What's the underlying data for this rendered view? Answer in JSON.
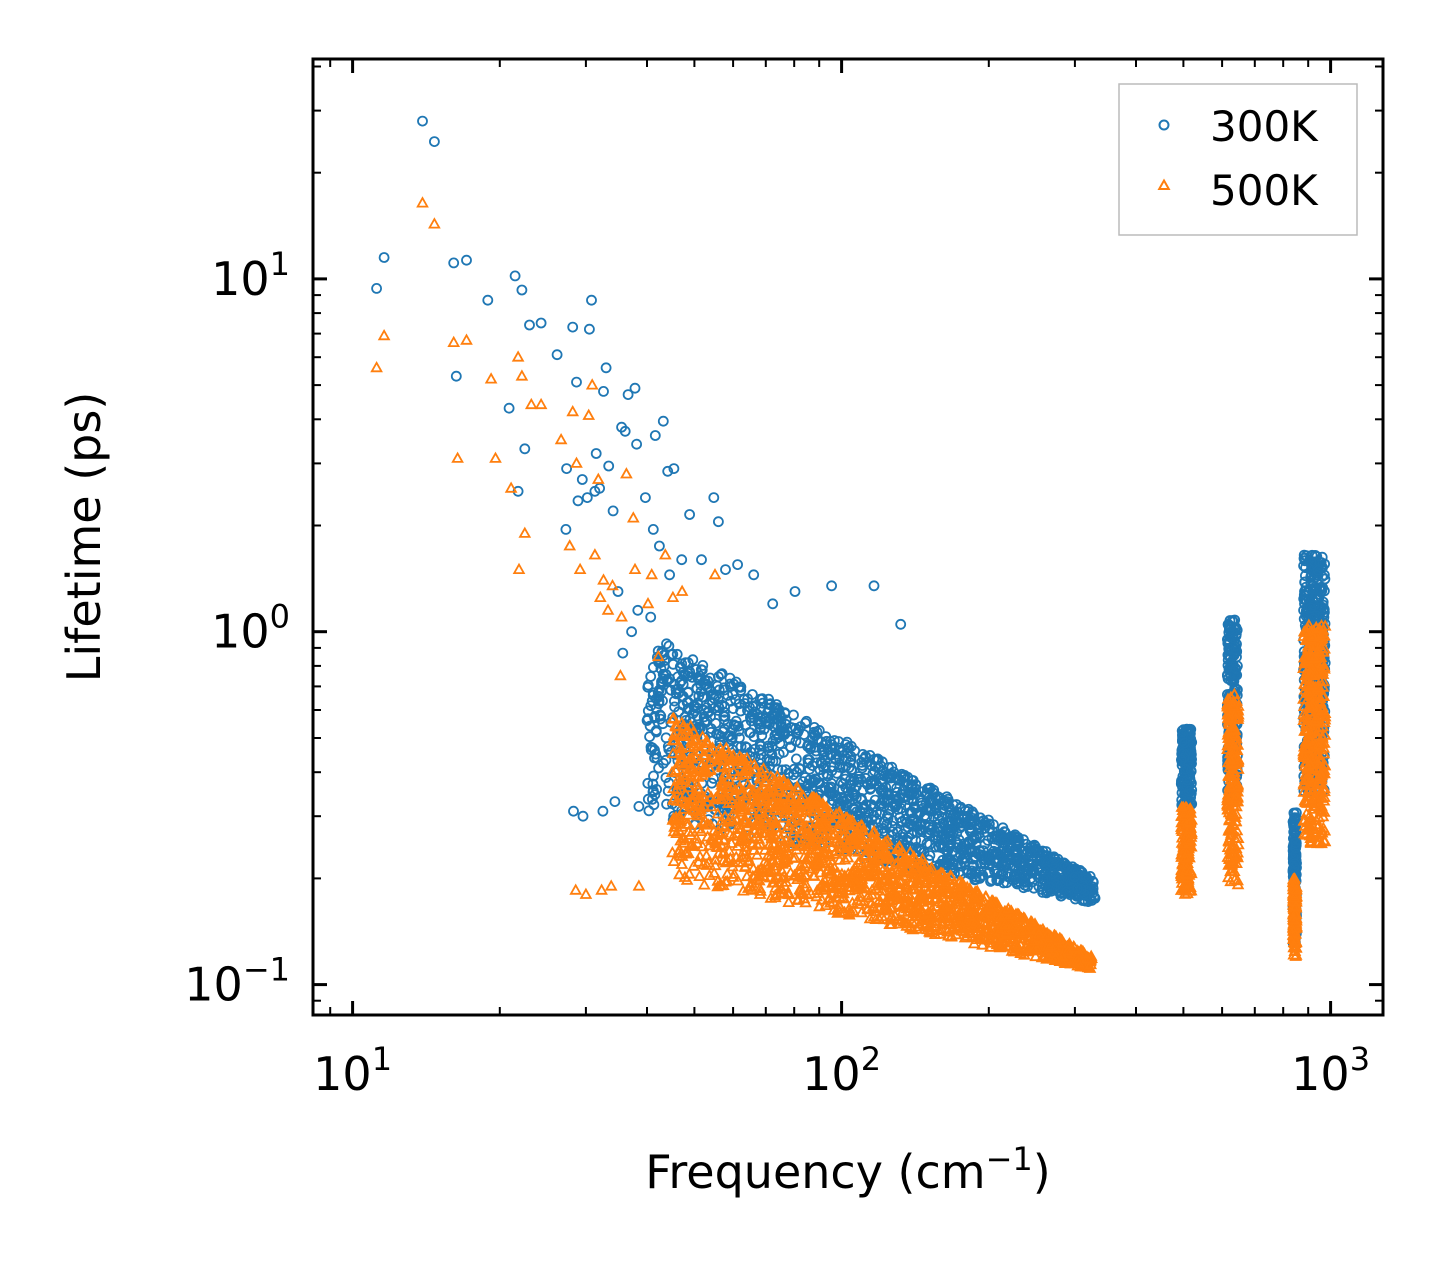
{
  "chart_data": {
    "type": "scatter",
    "xscale": "log",
    "yscale": "log",
    "xlabel": "Frequency (cm",
    "xlabel_sup": "−1",
    "xlabel_end": ")",
    "ylabel": "Lifetime (ps)",
    "xlim": [
      8.3,
      1280
    ],
    "ylim": [
      0.082,
      42
    ],
    "x_ticks": [
      {
        "value": 10,
        "base": "10",
        "exp": "1"
      },
      {
        "value": 100,
        "base": "10",
        "exp": "2"
      },
      {
        "value": 1000,
        "base": "10",
        "exp": "3"
      }
    ],
    "y_ticks": [
      {
        "value": 0.1,
        "base": "10",
        "exp": "−1"
      },
      {
        "value": 1,
        "base": "10",
        "exp": "0"
      },
      {
        "value": 10,
        "base": "10",
        "exp": "1"
      }
    ],
    "legend": {
      "position": "top-right"
    },
    "series": [
      {
        "name": "300K",
        "marker": "circle",
        "color": "#1f77b4",
        "points": [
          [
            11.2,
            9.4
          ],
          [
            11.6,
            11.5
          ],
          [
            13.9,
            28
          ],
          [
            14.7,
            24.5
          ],
          [
            16.1,
            11.1
          ],
          [
            16.3,
            5.3
          ],
          [
            17.1,
            11.3
          ],
          [
            18.9,
            8.7
          ],
          [
            20.9,
            4.3
          ],
          [
            21.5,
            10.2
          ],
          [
            21.8,
            2.5
          ],
          [
            22.2,
            9.3
          ],
          [
            22.5,
            3.3
          ],
          [
            23,
            7.4
          ],
          [
            24.3,
            7.5
          ],
          [
            26.2,
            6.1
          ],
          [
            27.3,
            1.95
          ],
          [
            27.4,
            2.9
          ],
          [
            28.2,
            7.3
          ],
          [
            28.7,
            5.1
          ],
          [
            28.9,
            2.35
          ],
          [
            29.5,
            2.7
          ],
          [
            30.2,
            2.4
          ],
          [
            30.5,
            7.2
          ],
          [
            30.8,
            8.7
          ],
          [
            31.3,
            2.5
          ],
          [
            31.5,
            3.2
          ],
          [
            32,
            2.55
          ],
          [
            32.6,
            4.8
          ],
          [
            33,
            5.6
          ],
          [
            33.4,
            2.95
          ],
          [
            34.1,
            2.2
          ],
          [
            34.9,
            1.3
          ],
          [
            35.5,
            3.8
          ],
          [
            35.7,
            0.87
          ],
          [
            36.1,
            3.7
          ],
          [
            36.6,
            4.7
          ],
          [
            37.2,
            1
          ],
          [
            37.8,
            4.9
          ],
          [
            38.1,
            3.4
          ],
          [
            38.3,
            1.15
          ],
          [
            39.7,
            2.4
          ],
          [
            40.7,
            1.1
          ],
          [
            41.6,
            3.6
          ],
          [
            41.2,
            1.95
          ],
          [
            41.8,
            0.52
          ],
          [
            42.4,
            1.75
          ],
          [
            43.2,
            3.95
          ],
          [
            44.5,
            1.45
          ],
          [
            44.1,
            2.85
          ],
          [
            45.4,
            2.9
          ],
          [
            47.1,
            1.6
          ],
          [
            48.9,
            2.15
          ],
          [
            51.7,
            1.6
          ],
          [
            54.8,
            2.4
          ],
          [
            56,
            2.05
          ],
          [
            57.9,
            1.5
          ],
          [
            61.3,
            1.55
          ],
          [
            66.1,
            1.45
          ],
          [
            72.3,
            1.2
          ],
          [
            80.3,
            1.3
          ],
          [
            95.4,
            1.35
          ],
          [
            116.5,
            1.35
          ],
          [
            132.1,
            1.05
          ],
          [
            28.3,
            0.31
          ],
          [
            29.6,
            0.3
          ],
          [
            32.5,
            0.31
          ],
          [
            34.4,
            0.33
          ],
          [
            38.5,
            0.32
          ]
        ],
        "clusters": [
          {
            "x_min": 40,
            "x_max": 330,
            "y_top_at_min": 1.0,
            "y_top_at_max": 0.2,
            "y_bottom_at_min": 0.3,
            "y_bottom_at_max": 0.17,
            "n": 1700
          },
          {
            "x_min": 495,
            "x_max": 520,
            "y_top_at_min": 0.53,
            "y_top_at_max": 0.53,
            "y_bottom_at_min": 0.31,
            "y_bottom_at_max": 0.31,
            "n": 150
          },
          {
            "x_min": 615,
            "x_max": 645,
            "y_top_at_min": 1.08,
            "y_top_at_max": 1.08,
            "y_bottom_at_min": 0.33,
            "y_bottom_at_max": 0.33,
            "n": 220
          },
          {
            "x_min": 838,
            "x_max": 852,
            "y_top_at_min": 0.31,
            "y_top_at_max": 0.31,
            "y_bottom_at_min": 0.13,
            "y_bottom_at_max": 0.13,
            "n": 150
          },
          {
            "x_min": 880,
            "x_max": 975,
            "y_top_at_min": 1.65,
            "y_top_at_max": 1.65,
            "y_bottom_at_min": 0.35,
            "y_bottom_at_max": 0.35,
            "n": 380
          }
        ]
      },
      {
        "name": "500K",
        "marker": "triangle",
        "color": "#ff7f0e",
        "points": [
          [
            11.2,
            5.6
          ],
          [
            11.6,
            6.9
          ],
          [
            13.9,
            16.4
          ],
          [
            14.7,
            14.3
          ],
          [
            16.1,
            6.6
          ],
          [
            16.4,
            3.1
          ],
          [
            17.1,
            6.7
          ],
          [
            19.2,
            5.2
          ],
          [
            19.6,
            3.1
          ],
          [
            21.1,
            2.55
          ],
          [
            21.8,
            6
          ],
          [
            22.2,
            5.3
          ],
          [
            22.5,
            1.9
          ],
          [
            23.2,
            4.4
          ],
          [
            24.3,
            4.4
          ],
          [
            21.9,
            1.5
          ],
          [
            26.7,
            3.5
          ],
          [
            27.8,
            1.75
          ],
          [
            28.2,
            4.2
          ],
          [
            28.7,
            3
          ],
          [
            29.2,
            1.5
          ],
          [
            30.4,
            4.1
          ],
          [
            30.9,
            5
          ],
          [
            31.3,
            1.65
          ],
          [
            31.8,
            2.7
          ],
          [
            32.1,
            1.25
          ],
          [
            32.6,
            1.4
          ],
          [
            33.3,
            1.15
          ],
          [
            34,
            1.35
          ],
          [
            35.3,
            0.75
          ],
          [
            35.5,
            1.1
          ],
          [
            36.3,
            2.8
          ],
          [
            37.5,
            2.1
          ],
          [
            37.8,
            1.5
          ],
          [
            40.2,
            1.2
          ],
          [
            40.9,
            1.45
          ],
          [
            42.2,
            0.85
          ],
          [
            43.6,
            1.65
          ],
          [
            45.2,
            1.25
          ],
          [
            47.2,
            1.3
          ],
          [
            55.1,
            1.45
          ],
          [
            28.6,
            0.185
          ],
          [
            30,
            0.18
          ],
          [
            32.3,
            0.185
          ],
          [
            33.8,
            0.19
          ],
          [
            38.5,
            0.19
          ]
        ],
        "clusters": [
          {
            "x_min": 45,
            "x_max": 325,
            "y_top_at_min": 0.58,
            "y_top_at_max": 0.12,
            "y_bottom_at_min": 0.2,
            "y_bottom_at_max": 0.11,
            "n": 1900
          },
          {
            "x_min": 495,
            "x_max": 520,
            "y_top_at_min": 0.32,
            "y_top_at_max": 0.32,
            "y_bottom_at_min": 0.18,
            "y_bottom_at_max": 0.18,
            "n": 150
          },
          {
            "x_min": 615,
            "x_max": 648,
            "y_top_at_min": 0.68,
            "y_top_at_max": 0.68,
            "y_bottom_at_min": 0.19,
            "y_bottom_at_max": 0.19,
            "n": 220
          },
          {
            "x_min": 838,
            "x_max": 852,
            "y_top_at_min": 0.2,
            "y_top_at_max": 0.2,
            "y_bottom_at_min": 0.12,
            "y_bottom_at_max": 0.12,
            "n": 150
          },
          {
            "x_min": 880,
            "x_max": 975,
            "y_top_at_min": 1.05,
            "y_top_at_max": 1.05,
            "y_bottom_at_min": 0.25,
            "y_bottom_at_max": 0.25,
            "n": 380
          }
        ]
      }
    ]
  }
}
